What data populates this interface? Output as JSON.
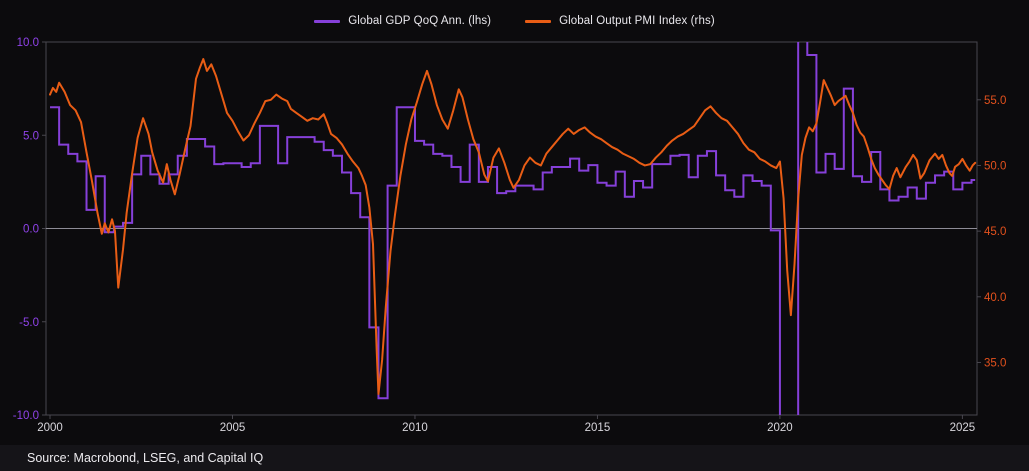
{
  "legend": {
    "gdp_label": "Global GDP QoQ Ann. (lhs)",
    "pmi_label": "Global Output PMI Index (rhs)"
  },
  "footer": {
    "source_text": "Source: Macrobond, LSEG, and Capital IQ"
  },
  "colors": {
    "gdp_purple": "#8640d9",
    "pmi_orange": "#e95d15",
    "lhs_tick_text": "#9043ea",
    "rhs_tick_text": "#e3511d",
    "x_tick_text": "#d8d6dc",
    "frame": "#49474f",
    "zero_line": "#8e8c96",
    "background": "#0c0b0d",
    "footer_background": "#151418"
  },
  "chart_data": {
    "type": "line",
    "title": "",
    "xlabel": "",
    "ylabel_left": "",
    "ylabel_right": "",
    "grid": false,
    "legend_position": "top-center",
    "x_axis": {
      "range": [
        1999.89,
        2025.4
      ],
      "ticks": [
        2000,
        2005,
        2010,
        2015,
        2020,
        2025
      ],
      "labels": [
        "2000",
        "2005",
        "2010",
        "2015",
        "2020",
        "2025"
      ]
    },
    "lhs_axis": {
      "range": [
        -10,
        10
      ],
      "ticks": [
        10,
        5,
        0,
        -5,
        -10
      ],
      "labels": [
        "10.0",
        "5.0",
        "0.0",
        "-5.0",
        "-10.0"
      ]
    },
    "rhs_axis": {
      "range": [
        31,
        59.4
      ],
      "ticks": [
        55,
        50,
        45,
        40,
        35
      ],
      "labels": [
        "55.0",
        "50.0",
        "45.0",
        "40.0",
        "35.0"
      ]
    },
    "zero_line_lhs_value": 0,
    "series": [
      {
        "name": "Global GDP QoQ Ann. (lhs)",
        "axis": "lhs",
        "style": "step",
        "color": "#8640d9",
        "start": 2000.0,
        "interval": 0.25,
        "end": 2025.35,
        "note": "quarterly, values beyond +/-10 are clipped by the axis",
        "values": [
          6.5,
          4.5,
          4.0,
          3.6,
          1.0,
          2.8,
          -0.2,
          0.1,
          0.3,
          2.9,
          3.9,
          2.9,
          2.4,
          2.9,
          3.9,
          4.8,
          4.8,
          4.4,
          3.45,
          3.5,
          3.5,
          3.3,
          3.5,
          5.5,
          5.5,
          3.5,
          4.9,
          4.9,
          4.9,
          4.65,
          4.2,
          3.9,
          3.0,
          1.9,
          0.6,
          -5.3,
          -9.1,
          2.3,
          6.5,
          6.5,
          4.7,
          4.5,
          4.0,
          3.9,
          3.3,
          2.5,
          4.5,
          2.5,
          3.3,
          1.9,
          2.0,
          2.3,
          2.3,
          2.1,
          3.0,
          3.3,
          3.3,
          3.75,
          3.1,
          3.4,
          2.45,
          2.3,
          3.05,
          1.7,
          2.55,
          2.2,
          3.45,
          3.45,
          3.9,
          3.95,
          2.75,
          3.9,
          4.15,
          2.85,
          2.05,
          1.7,
          2.85,
          2.55,
          2.3,
          -0.1,
          -13,
          -13,
          13,
          9.3,
          3.0,
          4.0,
          3.2,
          7.5,
          2.8,
          2.5,
          4.1,
          2.1,
          1.5,
          1.7,
          2.2,
          1.6,
          2.45,
          2.85,
          3.05,
          2.1,
          2.45,
          2.6
        ]
      },
      {
        "name": "Global Output PMI Index (rhs)",
        "axis": "rhs",
        "style": "line",
        "color": "#e95d15",
        "points": [
          [
            2000.0,
            55.4
          ],
          [
            2000.08,
            55.9
          ],
          [
            2000.17,
            55.6
          ],
          [
            2000.25,
            56.3
          ],
          [
            2000.4,
            55.6
          ],
          [
            2000.55,
            54.6
          ],
          [
            2000.7,
            54.2
          ],
          [
            2000.85,
            53.3
          ],
          [
            2001.0,
            51.0
          ],
          [
            2001.15,
            48.8
          ],
          [
            2001.3,
            46.4
          ],
          [
            2001.42,
            44.8
          ],
          [
            2001.5,
            45.6
          ],
          [
            2001.6,
            44.9
          ],
          [
            2001.7,
            45.9
          ],
          [
            2001.78,
            45.0
          ],
          [
            2001.87,
            40.7
          ],
          [
            2002.0,
            43.6
          ],
          [
            2002.1,
            46.4
          ],
          [
            2002.25,
            49.4
          ],
          [
            2002.4,
            52.1
          ],
          [
            2002.55,
            53.6
          ],
          [
            2002.7,
            52.4
          ],
          [
            2002.8,
            51.0
          ],
          [
            2002.95,
            49.6
          ],
          [
            2003.1,
            48.7
          ],
          [
            2003.2,
            50.1
          ],
          [
            2003.3,
            48.9
          ],
          [
            2003.42,
            47.8
          ],
          [
            2003.55,
            49.3
          ],
          [
            2003.7,
            51.2
          ],
          [
            2003.85,
            53.0
          ],
          [
            2004.0,
            56.6
          ],
          [
            2004.1,
            57.4
          ],
          [
            2004.2,
            58.1
          ],
          [
            2004.3,
            57.2
          ],
          [
            2004.42,
            57.7
          ],
          [
            2004.55,
            56.8
          ],
          [
            2004.7,
            55.4
          ],
          [
            2004.85,
            54.0
          ],
          [
            2005.0,
            53.4
          ],
          [
            2005.15,
            52.6
          ],
          [
            2005.3,
            51.9
          ],
          [
            2005.45,
            52.3
          ],
          [
            2005.6,
            53.2
          ],
          [
            2005.75,
            54.0
          ],
          [
            2005.9,
            54.9
          ],
          [
            2006.05,
            55.0
          ],
          [
            2006.2,
            55.4
          ],
          [
            2006.35,
            55.1
          ],
          [
            2006.5,
            54.9
          ],
          [
            2006.6,
            54.3
          ],
          [
            2006.75,
            54.0
          ],
          [
            2006.9,
            53.7
          ],
          [
            2007.05,
            53.4
          ],
          [
            2007.2,
            53.6
          ],
          [
            2007.35,
            53.5
          ],
          [
            2007.5,
            53.9
          ],
          [
            2007.6,
            53.2
          ],
          [
            2007.7,
            52.4
          ],
          [
            2007.85,
            52.1
          ],
          [
            2008.0,
            51.6
          ],
          [
            2008.15,
            50.9
          ],
          [
            2008.3,
            50.3
          ],
          [
            2008.45,
            49.8
          ],
          [
            2008.55,
            49.2
          ],
          [
            2008.65,
            48.5
          ],
          [
            2008.75,
            46.8
          ],
          [
            2008.85,
            44.0
          ],
          [
            2008.95,
            36.0
          ],
          [
            2009.0,
            32.6
          ],
          [
            2009.1,
            35.2
          ],
          [
            2009.2,
            39.2
          ],
          [
            2009.33,
            43.5
          ],
          [
            2009.45,
            46.2
          ],
          [
            2009.6,
            49.2
          ],
          [
            2009.75,
            51.6
          ],
          [
            2009.9,
            53.5
          ],
          [
            2010.05,
            54.8
          ],
          [
            2010.2,
            56.2
          ],
          [
            2010.33,
            57.2
          ],
          [
            2010.45,
            56.2
          ],
          [
            2010.6,
            54.6
          ],
          [
            2010.75,
            53.5
          ],
          [
            2010.9,
            52.8
          ],
          [
            2011.05,
            54.2
          ],
          [
            2011.2,
            55.8
          ],
          [
            2011.3,
            55.2
          ],
          [
            2011.45,
            53.5
          ],
          [
            2011.6,
            52.0
          ],
          [
            2011.75,
            51.0
          ],
          [
            2011.9,
            49.3
          ],
          [
            2012.0,
            48.8
          ],
          [
            2012.15,
            50.6
          ],
          [
            2012.3,
            51.3
          ],
          [
            2012.45,
            50.2
          ],
          [
            2012.6,
            48.9
          ],
          [
            2012.7,
            48.3
          ],
          [
            2012.85,
            48.9
          ],
          [
            2013.0,
            50.0
          ],
          [
            2013.15,
            50.6
          ],
          [
            2013.3,
            50.2
          ],
          [
            2013.45,
            50.0
          ],
          [
            2013.6,
            50.9
          ],
          [
            2013.75,
            51.4
          ],
          [
            2013.9,
            51.9
          ],
          [
            2014.05,
            52.4
          ],
          [
            2014.2,
            52.8
          ],
          [
            2014.35,
            52.4
          ],
          [
            2014.5,
            52.7
          ],
          [
            2014.65,
            52.9
          ],
          [
            2014.8,
            52.5
          ],
          [
            2014.95,
            52.2
          ],
          [
            2015.1,
            52.0
          ],
          [
            2015.25,
            51.7
          ],
          [
            2015.4,
            51.4
          ],
          [
            2015.55,
            51.2
          ],
          [
            2015.7,
            50.9
          ],
          [
            2015.85,
            50.7
          ],
          [
            2016.0,
            50.5
          ],
          [
            2016.15,
            50.2
          ],
          [
            2016.3,
            50.0
          ],
          [
            2016.45,
            50.1
          ],
          [
            2016.6,
            50.6
          ],
          [
            2016.75,
            51.0
          ],
          [
            2016.9,
            51.5
          ],
          [
            2017.05,
            51.9
          ],
          [
            2017.2,
            52.2
          ],
          [
            2017.35,
            52.4
          ],
          [
            2017.5,
            52.7
          ],
          [
            2017.65,
            53.0
          ],
          [
            2017.8,
            53.6
          ],
          [
            2017.95,
            54.2
          ],
          [
            2018.1,
            54.5
          ],
          [
            2018.25,
            54.0
          ],
          [
            2018.4,
            53.6
          ],
          [
            2018.55,
            53.4
          ],
          [
            2018.7,
            52.9
          ],
          [
            2018.85,
            52.4
          ],
          [
            2019.0,
            51.7
          ],
          [
            2019.15,
            51.2
          ],
          [
            2019.3,
            51.0
          ],
          [
            2019.45,
            50.5
          ],
          [
            2019.6,
            50.3
          ],
          [
            2019.75,
            50.0
          ],
          [
            2019.9,
            49.8
          ],
          [
            2020.0,
            50.3
          ],
          [
            2020.1,
            47.5
          ],
          [
            2020.2,
            42.0
          ],
          [
            2020.3,
            38.6
          ],
          [
            2020.4,
            42.5
          ],
          [
            2020.5,
            47.5
          ],
          [
            2020.6,
            50.8
          ],
          [
            2020.7,
            52.1
          ],
          [
            2020.8,
            52.9
          ],
          [
            2020.9,
            52.6
          ],
          [
            2021.0,
            53.2
          ],
          [
            2021.1,
            54.8
          ],
          [
            2021.2,
            56.5
          ],
          [
            2021.3,
            55.9
          ],
          [
            2021.4,
            55.3
          ],
          [
            2021.5,
            54.6
          ],
          [
            2021.6,
            54.9
          ],
          [
            2021.7,
            55.1
          ],
          [
            2021.8,
            55.3
          ],
          [
            2021.9,
            54.6
          ],
          [
            2022.0,
            54.0
          ],
          [
            2022.1,
            53.1
          ],
          [
            2022.2,
            52.5
          ],
          [
            2022.3,
            52.2
          ],
          [
            2022.4,
            51.4
          ],
          [
            2022.5,
            50.5
          ],
          [
            2022.6,
            49.8
          ],
          [
            2022.7,
            49.3
          ],
          [
            2022.8,
            48.9
          ],
          [
            2022.9,
            48.5
          ],
          [
            2023.0,
            48.2
          ],
          [
            2023.1,
            49.2
          ],
          [
            2023.2,
            49.8
          ],
          [
            2023.3,
            49.1
          ],
          [
            2023.45,
            49.9
          ],
          [
            2023.55,
            50.3
          ],
          [
            2023.65,
            50.8
          ],
          [
            2023.75,
            50.4
          ],
          [
            2023.85,
            49.0
          ],
          [
            2023.95,
            49.4
          ],
          [
            2024.1,
            50.4
          ],
          [
            2024.25,
            50.9
          ],
          [
            2024.35,
            50.5
          ],
          [
            2024.45,
            50.8
          ],
          [
            2024.55,
            50.0
          ],
          [
            2024.65,
            49.4
          ],
          [
            2024.72,
            49.2
          ],
          [
            2024.8,
            49.9
          ],
          [
            2024.9,
            50.1
          ],
          [
            2025.0,
            50.5
          ],
          [
            2025.1,
            50.0
          ],
          [
            2025.2,
            49.6
          ],
          [
            2025.28,
            50.0
          ],
          [
            2025.35,
            50.2
          ]
        ]
      }
    ]
  }
}
